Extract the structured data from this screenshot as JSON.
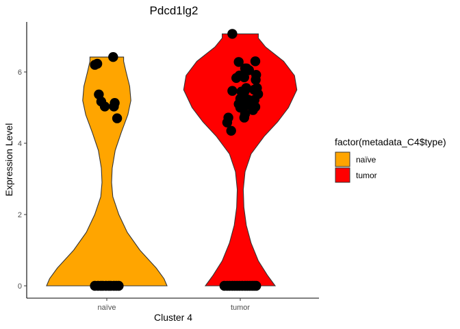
{
  "chart_data": {
    "type": "violin",
    "title": "Pdcd1lg2",
    "xlabel": "Cluster 4",
    "ylabel": "Expression Level",
    "categories": [
      "naïve",
      "tumor"
    ],
    "ylim": [
      -0.35,
      7.3
    ],
    "yticks": [
      0,
      2,
      4,
      6
    ],
    "grid": false,
    "legend": {
      "title": "factor(metadata_C4$type)",
      "position": "right",
      "entries": [
        {
          "label": "naïve",
          "color": "#FFA500"
        },
        {
          "label": "tumor",
          "color": "#FF0000"
        }
      ]
    },
    "series": [
      {
        "category": "naïve",
        "fill": "#FFA500",
        "range": [
          0,
          6.42
        ],
        "density": [
          [
            0,
            1.0
          ],
          [
            0.2,
            0.95
          ],
          [
            0.5,
            0.82
          ],
          [
            1.0,
            0.55
          ],
          [
            1.5,
            0.34
          ],
          [
            2.0,
            0.2
          ],
          [
            2.5,
            0.1
          ],
          [
            2.9,
            0.08
          ],
          [
            3.3,
            0.09
          ],
          [
            3.8,
            0.14
          ],
          [
            4.3,
            0.24
          ],
          [
            4.8,
            0.35
          ],
          [
            5.2,
            0.4
          ],
          [
            5.6,
            0.38
          ],
          [
            6.0,
            0.32
          ],
          [
            6.3,
            0.28
          ],
          [
            6.42,
            0.28
          ]
        ],
        "points": [
          [
            -0.3,
            6.2
          ],
          [
            -0.24,
            6.23
          ],
          [
            0.16,
            6.42
          ],
          [
            -0.2,
            5.37
          ],
          [
            -0.14,
            5.17
          ],
          [
            -0.05,
            5.03
          ],
          [
            0.18,
            5.03
          ],
          [
            0.2,
            5.13
          ],
          [
            0.26,
            4.7
          ],
          [
            -0.3,
            0
          ],
          [
            -0.22,
            0
          ],
          [
            -0.15,
            0
          ],
          [
            -0.1,
            0
          ],
          [
            -0.02,
            0
          ],
          [
            0.05,
            0
          ],
          [
            0.1,
            0
          ],
          [
            0.18,
            0
          ],
          [
            0.24,
            0
          ],
          [
            0.3,
            0
          ]
        ]
      },
      {
        "category": "tumor",
        "fill": "#FF0000",
        "range": [
          0,
          7.07
        ],
        "density": [
          [
            0,
            0.58
          ],
          [
            0.3,
            0.45
          ],
          [
            0.7,
            0.3
          ],
          [
            1.2,
            0.18
          ],
          [
            1.7,
            0.1
          ],
          [
            2.2,
            0.06
          ],
          [
            2.7,
            0.05
          ],
          [
            3.2,
            0.08
          ],
          [
            3.7,
            0.18
          ],
          [
            4.2,
            0.4
          ],
          [
            4.6,
            0.62
          ],
          [
            5.0,
            0.8
          ],
          [
            5.5,
            0.94
          ],
          [
            5.9,
            0.9
          ],
          [
            6.3,
            0.72
          ],
          [
            6.7,
            0.42
          ],
          [
            6.95,
            0.3
          ],
          [
            7.07,
            0.3
          ]
        ],
        "points": [
          [
            -0.2,
            7.07
          ],
          [
            0.38,
            6.3
          ],
          [
            -0.04,
            6.28
          ],
          [
            0.12,
            6.1
          ],
          [
            0.16,
            6.1
          ],
          [
            0.22,
            6.05
          ],
          [
            -0.02,
            5.9
          ],
          [
            0.4,
            5.92
          ],
          [
            -0.1,
            5.83
          ],
          [
            0.1,
            5.85
          ],
          [
            0.39,
            5.78
          ],
          [
            0.42,
            5.55
          ],
          [
            0.15,
            5.55
          ],
          [
            0.35,
            5.5
          ],
          [
            0.03,
            5.45
          ],
          [
            0.12,
            5.48
          ],
          [
            -0.2,
            5.47
          ],
          [
            0.45,
            5.38
          ],
          [
            0.09,
            5.35
          ],
          [
            0.0,
            5.25
          ],
          [
            0.07,
            5.2
          ],
          [
            0.2,
            5.22
          ],
          [
            0.36,
            5.22
          ],
          [
            -0.04,
            5.1
          ],
          [
            0.15,
            5.07
          ],
          [
            0.27,
            5.05
          ],
          [
            0.38,
            5.02
          ],
          [
            0.0,
            5.0
          ],
          [
            0.32,
            4.93
          ],
          [
            0.12,
            4.82
          ],
          [
            0.1,
            4.72
          ],
          [
            -0.3,
            4.72
          ],
          [
            -0.33,
            4.58
          ],
          [
            -0.23,
            4.35
          ],
          [
            -0.4,
            0
          ],
          [
            -0.33,
            0
          ],
          [
            -0.27,
            0
          ],
          [
            -0.2,
            0
          ],
          [
            -0.14,
            0
          ],
          [
            -0.08,
            0
          ],
          [
            -0.02,
            0
          ],
          [
            0.05,
            0
          ],
          [
            0.12,
            0
          ],
          [
            0.18,
            0
          ],
          [
            0.24,
            0
          ],
          [
            0.3,
            0
          ],
          [
            0.35,
            0
          ],
          [
            0.4,
            0
          ]
        ]
      }
    ]
  }
}
